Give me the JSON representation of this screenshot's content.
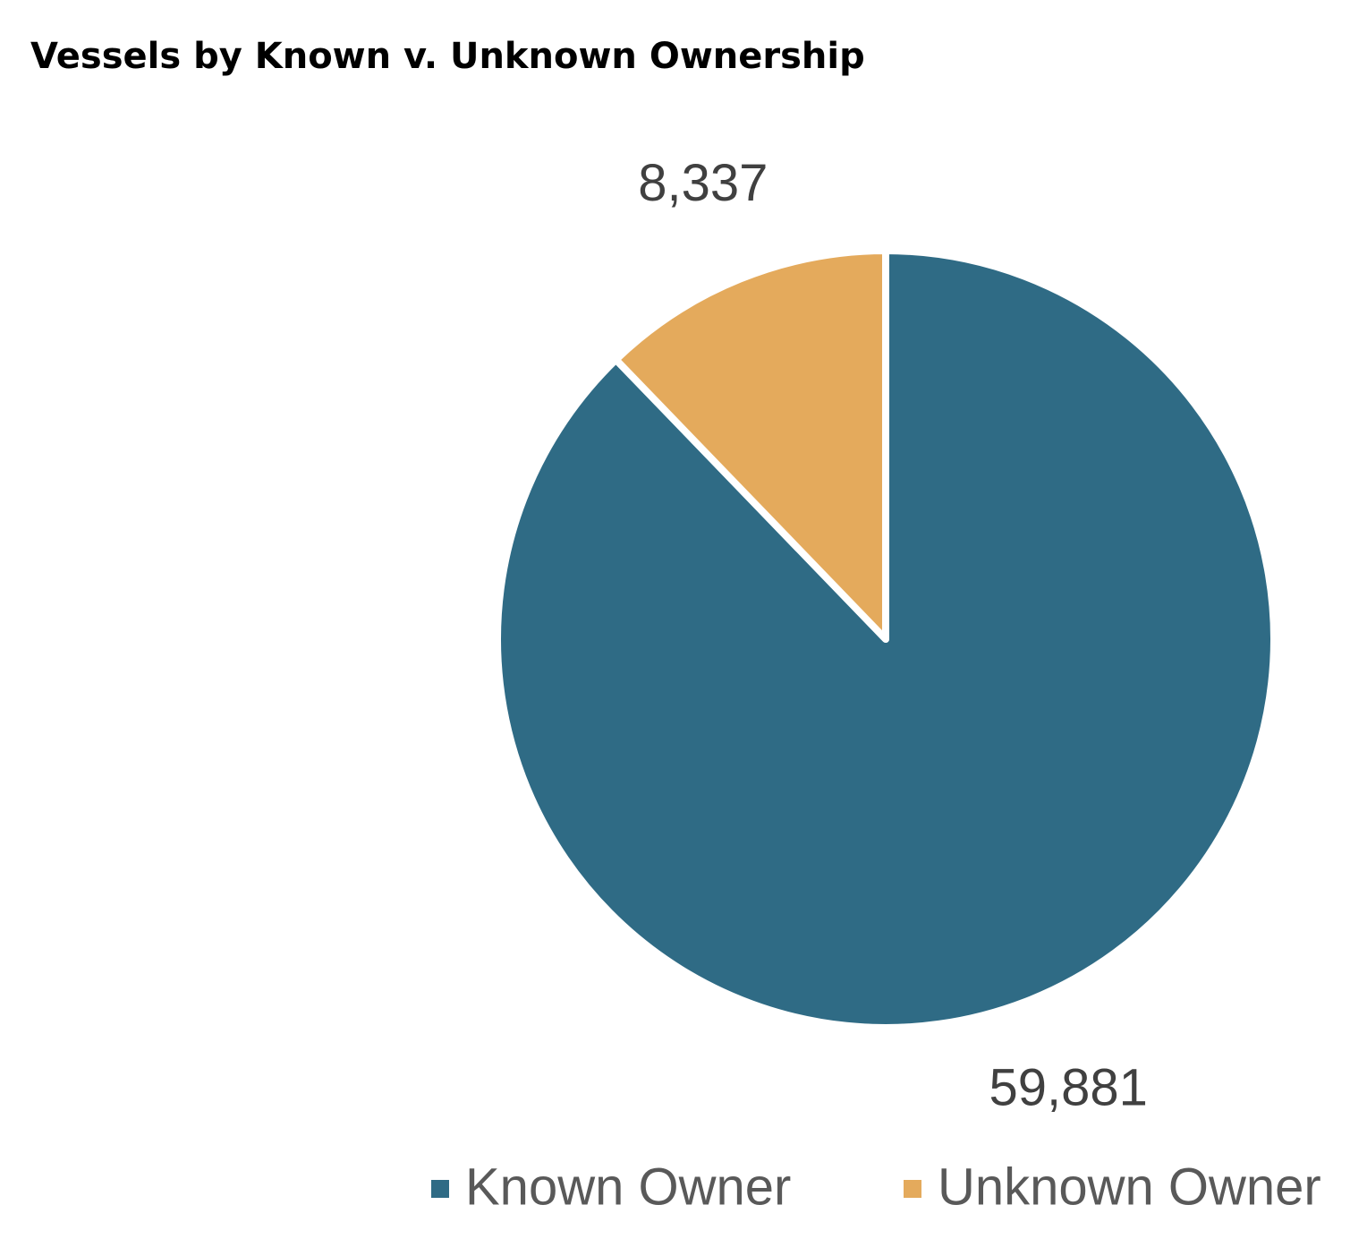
{
  "chart_data": {
    "type": "pie",
    "title": "Vessels by Known v. Unknown Ownership",
    "categories": [
      "Known Owner",
      "Unknown Owner"
    ],
    "values": [
      59881,
      8337
    ],
    "value_labels": [
      "59,881",
      "8,337"
    ],
    "colors": [
      "#2f6b85",
      "#e4aa5c"
    ]
  }
}
